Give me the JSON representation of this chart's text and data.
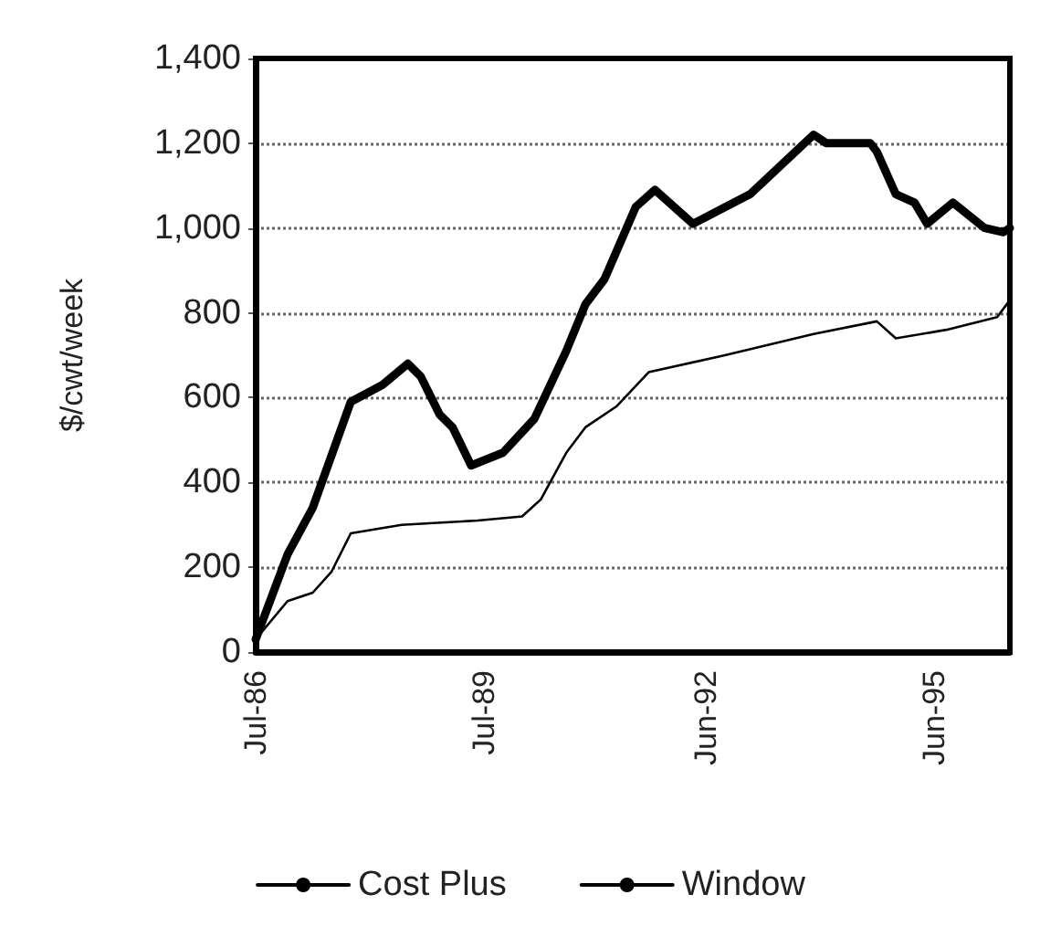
{
  "chart_data": {
    "type": "line",
    "ylabel": "$/cwt/week",
    "xlim": [
      "1986-07",
      "1996-06"
    ],
    "xticks": [
      {
        "value": "1986-07",
        "label": "Jul-86"
      },
      {
        "value": "1989-07",
        "label": "Jul-89"
      },
      {
        "value": "1992-06",
        "label": "Jun-92"
      },
      {
        "value": "1995-06",
        "label": "Jun-95"
      }
    ],
    "ylim": [
      0,
      1400
    ],
    "yticks": [
      0,
      200,
      400,
      600,
      800,
      {
        "value": 1000,
        "label": "1,000"
      },
      {
        "value": 1200,
        "label": "1,200"
      },
      {
        "value": 1400,
        "label": "1,400"
      }
    ],
    "grid": "y",
    "legend": "bottom",
    "marker": "none",
    "series": [
      {
        "name": "Cost Plus",
        "color": "#000000",
        "x": [
          "1986-07",
          "1986-12",
          "1987-04",
          "1987-10",
          "1988-03",
          "1988-07",
          "1988-09",
          "1988-12",
          "1989-02",
          "1989-05",
          "1989-10",
          "1990-03",
          "1990-08",
          "1990-11",
          "1991-02",
          "1991-07",
          "1991-10",
          "1992-04",
          "1993-01",
          "1993-11",
          "1994-01",
          "1994-08",
          "1994-09",
          "1994-12",
          "1995-03",
          "1995-05",
          "1995-09",
          "1996-02",
          "1996-05",
          "1996-06"
        ],
        "values": [
          30,
          230,
          340,
          590,
          630,
          680,
          650,
          560,
          530,
          440,
          470,
          550,
          710,
          820,
          880,
          1050,
          1090,
          1010,
          1080,
          1220,
          1200,
          1200,
          1180,
          1080,
          1060,
          1010,
          1060,
          1000,
          990,
          1000
        ]
      },
      {
        "name": "Window",
        "color": "#000000",
        "x": [
          "1986-07",
          "1986-12",
          "1987-04",
          "1987-07",
          "1987-10",
          "1988-06",
          "1989-06",
          "1990-01",
          "1990-04",
          "1990-08",
          "1990-11",
          "1991-04",
          "1991-09",
          "1992-09",
          "1993-11",
          "1994-09",
          "1994-12",
          "1995-08",
          "1996-04",
          "1996-06"
        ],
        "values": [
          30,
          120,
          140,
          190,
          280,
          300,
          310,
          320,
          360,
          470,
          530,
          580,
          660,
          700,
          750,
          780,
          740,
          760,
          790,
          830
        ]
      }
    ]
  }
}
